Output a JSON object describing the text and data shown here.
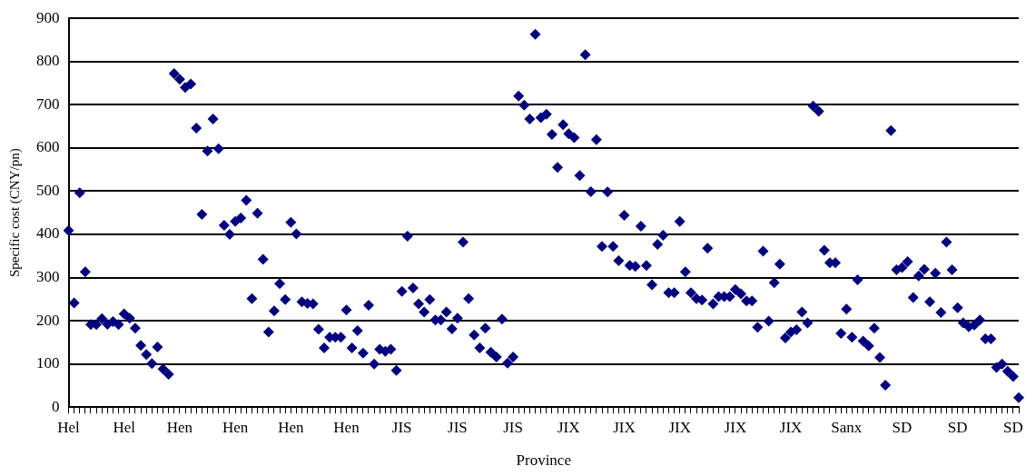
{
  "chart_data": {
    "type": "scatter",
    "xlabel": "Province",
    "ylabel": "Specific cost (CNY/pn)",
    "categories": [
      "Hel",
      null,
      null,
      null,
      null,
      null,
      null,
      null,
      null,
      null,
      "Hel",
      null,
      null,
      null,
      null,
      null,
      null,
      null,
      null,
      null,
      "Hen",
      null,
      null,
      null,
      null,
      null,
      null,
      null,
      null,
      null,
      "Hen",
      null,
      null,
      null,
      null,
      null,
      null,
      null,
      null,
      null,
      "Hen",
      null,
      null,
      null,
      null,
      null,
      null,
      null,
      null,
      null,
      "Hen",
      null,
      null,
      null,
      null,
      null,
      null,
      null,
      null,
      null,
      "JIS",
      null,
      null,
      null,
      null,
      null,
      null,
      null,
      null,
      null,
      "JIS",
      null,
      null,
      null,
      null,
      null,
      null,
      null,
      null,
      null,
      "JIS",
      null,
      null,
      null,
      null,
      null,
      null,
      null,
      null,
      null,
      "JIX",
      null,
      null,
      null,
      null,
      null,
      null,
      null,
      null,
      null,
      "JIX",
      null,
      null,
      null,
      null,
      null,
      null,
      null,
      null,
      null,
      "JIX",
      null,
      null,
      null,
      null,
      null,
      null,
      null,
      null,
      null,
      "JIX",
      null,
      null,
      null,
      null,
      null,
      null,
      null,
      null,
      null,
      "JIX",
      null,
      null,
      null,
      null,
      null,
      null,
      null,
      null,
      null,
      "Sanx",
      null,
      null,
      null,
      null,
      null,
      null,
      null,
      null,
      null,
      "SD",
      null,
      null,
      null,
      null,
      null,
      null,
      null,
      null,
      null,
      "SD",
      null,
      null,
      null,
      null,
      null,
      null,
      null,
      null,
      null,
      "SD",
      null
    ],
    "series": [
      {
        "color": "#000080",
        "values": [
          409,
          241,
          496,
          313,
          191,
          191,
          205,
          192,
          198,
          191,
          216,
          206,
          183,
          143,
          122,
          101,
          139,
          88,
          76,
          772,
          759,
          740,
          748,
          646,
          446,
          593,
          667,
          598,
          421,
          400,
          430,
          438,
          479,
          251,
          449,
          342,
          174,
          223,
          286,
          249,
          428,
          401,
          244,
          240,
          239,
          180,
          137,
          162,
          162,
          162,
          225,
          137,
          177,
          125,
          236,
          100,
          134,
          129,
          134,
          85,
          268,
          396,
          276,
          239,
          220,
          249,
          202,
          202,
          220,
          181,
          206,
          382,
          251,
          167,
          137,
          183,
          127,
          116,
          204,
          102,
          116,
          720,
          699,
          667,
          863,
          670,
          678,
          631,
          555,
          654,
          633,
          624,
          536,
          816,
          499,
          619,
          372,
          498,
          372,
          339,
          444,
          328,
          326,
          419,
          328,
          283,
          377,
          398,
          265,
          265,
          430,
          313,
          265,
          251,
          248,
          368,
          239,
          256,
          256,
          256,
          272,
          262,
          246,
          246,
          185,
          361,
          199,
          288,
          331,
          160,
          174,
          179,
          220,
          195,
          697,
          685,
          363,
          334,
          334,
          171,
          227,
          162,
          295,
          153,
          142,
          183,
          115,
          51,
          640,
          318,
          323,
          337,
          254,
          304,
          319,
          244,
          310,
          219,
          382,
          318,
          230,
          195,
          186,
          190,
          202,
          158,
          158,
          92,
          100,
          83,
          71,
          22
        ]
      }
    ],
    "ylim": [
      0,
      900
    ],
    "yticks": [
      0,
      100,
      200,
      300,
      400,
      500,
      600,
      700,
      800,
      900
    ],
    "grid": "y",
    "legend": false,
    "marker": "diamond"
  }
}
